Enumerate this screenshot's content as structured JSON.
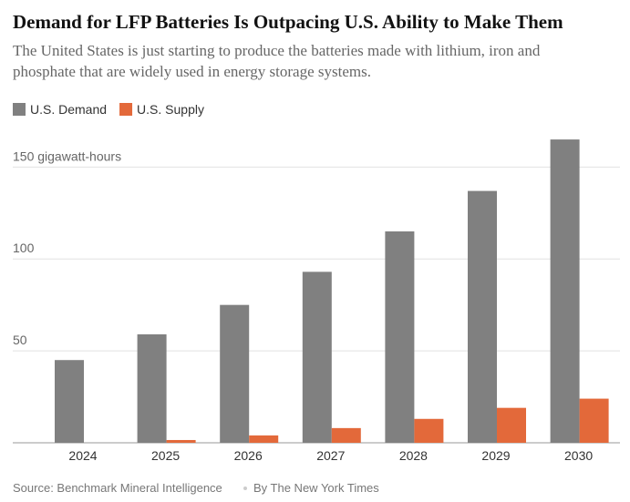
{
  "chart_data": {
    "type": "bar",
    "title": "Demand for LFP Batteries Is Outpacing U.S. Ability to Make Them",
    "subtitle": [
      "The United States is just starting to produce the batteries made with lithium, iron and",
      "phosphate that are widely used in energy storage systems."
    ],
    "categories": [
      "2024",
      "2025",
      "2026",
      "2027",
      "2028",
      "2029",
      "2030"
    ],
    "series": [
      {
        "name": "U.S. Demand",
        "color": "#808080",
        "values": [
          45,
          59,
          75,
          93,
          115,
          137,
          165
        ]
      },
      {
        "name": "U.S. Supply",
        "color": "#e3693a",
        "values": [
          0,
          1.5,
          4,
          8,
          13,
          19,
          24
        ]
      }
    ],
    "ylim": [
      0,
      170
    ],
    "yticks": [
      50,
      100,
      {
        "value": 150,
        "label": "150 gigawatt-hours"
      }
    ],
    "grid": true,
    "source": "Source: Benchmark Mineral Intelligence",
    "credit": "By The New York Times"
  }
}
